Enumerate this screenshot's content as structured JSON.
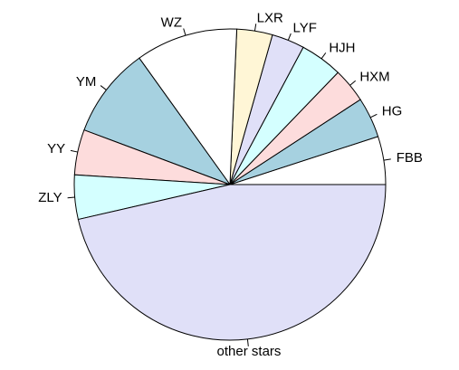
{
  "chart_data": {
    "type": "pie",
    "title": "",
    "start_angle_deg": 0,
    "direction": "counterclockwise",
    "slices": [
      {
        "label": "FBB",
        "value": 5.0,
        "color": "#ffffff"
      },
      {
        "label": "HG",
        "value": 4.2,
        "color": "#a6d1e0"
      },
      {
        "label": "HXM",
        "value": 3.6,
        "color": "#fddcdc"
      },
      {
        "label": "HJH",
        "value": 4.4,
        "color": "#d4ffff"
      },
      {
        "label": "LYF",
        "value": 3.4,
        "color": "#e0e0f8"
      },
      {
        "label": "LXR",
        "value": 3.7,
        "color": "#fff6d6"
      },
      {
        "label": "WZ",
        "value": 10.6,
        "color": "#ffffff"
      },
      {
        "label": "YM",
        "value": 9.4,
        "color": "#a6d1e0"
      },
      {
        "label": "YY",
        "value": 4.7,
        "color": "#fddcdc"
      },
      {
        "label": "ZLY",
        "value": 4.6,
        "color": "#d4ffff"
      },
      {
        "label": "other stars",
        "value": 46.4,
        "color": "#e0e0f8"
      }
    ]
  }
}
